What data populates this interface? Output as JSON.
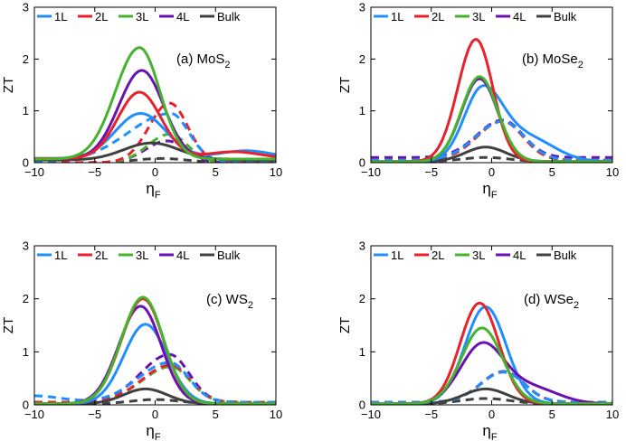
{
  "chart_data": [
    {
      "type": "line",
      "title": "(a) MoS",
      "title_sub": "2",
      "xlabel": "η",
      "xlabel_sub": "F",
      "ylabel": "ZT",
      "xlim": [
        -10,
        10
      ],
      "ylim": [
        0,
        3
      ],
      "xticks": [
        "−10",
        "−5",
        "0",
        "5",
        "10"
      ],
      "yticks": [
        "0",
        "1",
        "2",
        "3"
      ],
      "legend_position": "top-left",
      "series": [
        {
          "name": "1L",
          "color": "#1f8fff",
          "style": "solid",
          "peak": 0.95,
          "center": -1.2,
          "sl": 2.1,
          "sr": 2.1,
          "base": 0.08,
          "tail": [
            7.5,
            0.15
          ]
        },
        {
          "name": "2L",
          "color": "#e8222a",
          "style": "solid",
          "peak": 1.36,
          "center": -1.3,
          "sl": 1.8,
          "sr": 1.8,
          "base": 0.08,
          "tail": [
            6.5,
            0.13
          ]
        },
        {
          "name": "3L",
          "color": "#45b32c",
          "style": "solid",
          "peak": 2.22,
          "center": -1.3,
          "sl": 2.0,
          "sr": 1.7,
          "base": 0.07,
          "tail": null
        },
        {
          "name": "4L",
          "color": "#6a12b0",
          "style": "solid",
          "peak": 1.78,
          "center": -1.1,
          "sl": 1.9,
          "sr": 1.8,
          "base": 0.07,
          "tail": null
        },
        {
          "name": "Bulk",
          "color": "#404040",
          "style": "solid",
          "peak": 0.38,
          "center": -0.3,
          "sl": 2.3,
          "sr": 2.3,
          "base": 0.05,
          "tail": null
        },
        {
          "name": "1L",
          "color": "#1f8fff",
          "style": "dashed",
          "peak": 0.95,
          "center": 1.3,
          "sl": 3.5,
          "sr": 1.5,
          "base": 0.02,
          "tail": null
        },
        {
          "name": "2L",
          "color": "#e8222a",
          "style": "dashed",
          "peak": 1.15,
          "center": 1.2,
          "sl": 1.7,
          "sr": 1.5,
          "base": 0.0,
          "tail": null
        },
        {
          "name": "3L",
          "color": "#45b32c",
          "style": "dashed",
          "peak": 0.55,
          "center": 1.2,
          "sl": 1.8,
          "sr": 1.5,
          "base": 0.0,
          "tail": null
        },
        {
          "name": "4L",
          "color": "#6a12b0",
          "style": "dashed",
          "peak": 0.42,
          "center": 1.0,
          "sl": 1.8,
          "sr": 1.5,
          "base": 0.0,
          "tail": null
        },
        {
          "name": "Bulk",
          "color": "#404040",
          "style": "dashed",
          "peak": 0.08,
          "center": 0.5,
          "sl": 2.2,
          "sr": 2.2,
          "base": 0.0,
          "tail": null
        }
      ]
    },
    {
      "type": "line",
      "title": "(b) MoSe",
      "title_sub": "2",
      "xlabel": "η",
      "xlabel_sub": "F",
      "ylabel": "ZT",
      "xlim": [
        -10,
        10
      ],
      "ylim": [
        0,
        3
      ],
      "xticks": [
        "−10",
        "−5",
        "0",
        "5",
        "10"
      ],
      "yticks": [
        "0",
        "1",
        "2",
        "3"
      ],
      "legend_position": "top-left",
      "series": [
        {
          "name": "1L",
          "color": "#1f8fff",
          "style": "solid",
          "peak": 1.38,
          "center": -0.8,
          "sl": 1.5,
          "sr": 1.7,
          "base": 0.02,
          "tail": [
            3.0,
            0.45
          ]
        },
        {
          "name": "2L",
          "color": "#e8222a",
          "style": "solid",
          "peak": 2.38,
          "center": -1.3,
          "sl": 1.5,
          "sr": 1.4,
          "base": 0.02,
          "tail": null
        },
        {
          "name": "3L",
          "color": "#45b32c",
          "style": "solid",
          "peak": 1.66,
          "center": -1.0,
          "sl": 1.5,
          "sr": 1.5,
          "base": 0.02,
          "tail": null
        },
        {
          "name": "4L",
          "color": "#6a12b0",
          "style": "solid",
          "peak": 1.62,
          "center": -1.0,
          "sl": 1.5,
          "sr": 1.5,
          "base": 0.02,
          "tail": null
        },
        {
          "name": "Bulk",
          "color": "#404040",
          "style": "solid",
          "peak": 0.3,
          "center": -0.5,
          "sl": 1.7,
          "sr": 1.7,
          "base": 0.02,
          "tail": null
        },
        {
          "name": "1L",
          "color": "#1f8fff",
          "style": "dashed",
          "peak": 0.8,
          "center": 0.9,
          "sl": 2.2,
          "sr": 1.8,
          "base": 0.05,
          "tail": null
        },
        {
          "name": "2L",
          "color": "#e8222a",
          "style": "dashed",
          "peak": 0.8,
          "center": 0.9,
          "sl": 2.1,
          "sr": 1.7,
          "base": 0.05,
          "tail": null
        },
        {
          "name": "3L",
          "color": "#45b32c",
          "style": "dashed",
          "peak": 0.8,
          "center": 0.9,
          "sl": 2.1,
          "sr": 1.7,
          "base": 0.05,
          "tail": null
        },
        {
          "name": "4L",
          "color": "#6a12b0",
          "style": "dashed",
          "peak": 0.82,
          "center": 0.9,
          "sl": 2.1,
          "sr": 1.7,
          "base": 0.1,
          "tail": null
        },
        {
          "name": "Bulk",
          "color": "#404040",
          "style": "dashed",
          "peak": 0.1,
          "center": -0.5,
          "sl": 2.0,
          "sr": 2.0,
          "base": 0.02,
          "tail": null
        }
      ]
    },
    {
      "type": "line",
      "title": "(c) WS",
      "title_sub": "2",
      "xlabel": "η",
      "xlabel_sub": "F",
      "ylabel": "ZT",
      "xlim": [
        -10,
        10
      ],
      "ylim": [
        0,
        3
      ],
      "xticks": [
        "−10",
        "−5",
        "0",
        "5",
        "10"
      ],
      "yticks": [
        "0",
        "1",
        "2",
        "3"
      ],
      "legend_position": "top-left",
      "series": [
        {
          "name": "1L",
          "color": "#1f8fff",
          "style": "solid",
          "peak": 1.52,
          "center": -0.8,
          "sl": 1.8,
          "sr": 1.8,
          "base": 0.02,
          "tail": null
        },
        {
          "name": "2L",
          "color": "#e8222a",
          "style": "solid",
          "peak": 2.0,
          "center": -1.0,
          "sl": 1.8,
          "sr": 1.7,
          "base": 0.02,
          "tail": null
        },
        {
          "name": "3L",
          "color": "#45b32c",
          "style": "solid",
          "peak": 2.03,
          "center": -1.0,
          "sl": 1.8,
          "sr": 1.7,
          "base": 0.02,
          "tail": null
        },
        {
          "name": "4L",
          "color": "#6a12b0",
          "style": "solid",
          "peak": 1.86,
          "center": -1.2,
          "sl": 1.8,
          "sr": 1.7,
          "base": 0.02,
          "tail": null
        },
        {
          "name": "Bulk",
          "color": "#404040",
          "style": "solid",
          "peak": 0.3,
          "center": -0.8,
          "sl": 1.8,
          "sr": 1.8,
          "base": 0.02,
          "tail": null
        },
        {
          "name": "1L",
          "color": "#1f8fff",
          "style": "dashed",
          "peak": 0.8,
          "center": 1.2,
          "sl": 2.6,
          "sr": 1.6,
          "base": 0.05,
          "tail": [
            -10.0,
            0.12
          ]
        },
        {
          "name": "2L",
          "color": "#e8222a",
          "style": "dashed",
          "peak": 0.75,
          "center": 1.3,
          "sl": 2.4,
          "sr": 1.6,
          "base": 0.05,
          "tail": null
        },
        {
          "name": "3L",
          "color": "#45b32c",
          "style": "dashed",
          "peak": 0.72,
          "center": 1.3,
          "sl": 2.4,
          "sr": 1.6,
          "base": 0.05,
          "tail": null
        },
        {
          "name": "4L",
          "color": "#6a12b0",
          "style": "dashed",
          "peak": 0.95,
          "center": 1.2,
          "sl": 2.4,
          "sr": 1.6,
          "base": 0.05,
          "tail": null
        },
        {
          "name": "Bulk",
          "color": "#404040",
          "style": "dashed",
          "peak": 0.1,
          "center": 0.0,
          "sl": 2.0,
          "sr": 2.0,
          "base": 0.02,
          "tail": null
        }
      ]
    },
    {
      "type": "line",
      "title": "(d) WSe",
      "title_sub": "2",
      "xlabel": "η",
      "xlabel_sub": "F",
      "ylabel": "ZT",
      "xlim": [
        -10,
        10
      ],
      "ylim": [
        0,
        3
      ],
      "xticks": [
        "−10",
        "−5",
        "0",
        "5",
        "10"
      ],
      "yticks": [
        "0",
        "1",
        "2",
        "3"
      ],
      "legend_position": "top-left",
      "series": [
        {
          "name": "1L",
          "color": "#1f8fff",
          "style": "solid",
          "peak": 1.85,
          "center": -0.5,
          "sl": 1.7,
          "sr": 1.7,
          "base": 0.02,
          "tail": null
        },
        {
          "name": "2L",
          "color": "#e8222a",
          "style": "solid",
          "peak": 1.92,
          "center": -1.0,
          "sl": 1.6,
          "sr": 1.6,
          "base": 0.02,
          "tail": null
        },
        {
          "name": "3L",
          "color": "#45b32c",
          "style": "solid",
          "peak": 1.45,
          "center": -0.8,
          "sl": 1.7,
          "sr": 1.7,
          "base": 0.02,
          "tail": null
        },
        {
          "name": "4L",
          "color": "#6a12b0",
          "style": "solid",
          "peak": 1.12,
          "center": -0.8,
          "sl": 1.8,
          "sr": 1.8,
          "base": 0.02,
          "tail": [
            3.3,
            0.3
          ]
        },
        {
          "name": "Bulk",
          "color": "#404040",
          "style": "solid",
          "peak": 0.3,
          "center": -0.5,
          "sl": 1.8,
          "sr": 1.8,
          "base": 0.02,
          "tail": null
        },
        {
          "name": "1L",
          "color": "#1f8fff",
          "style": "dashed",
          "peak": 0.62,
          "center": 1.0,
          "sl": 1.9,
          "sr": 1.7,
          "base": 0.05,
          "tail": null
        },
        {
          "name": "2L",
          "color": "#e8222a",
          "style": "dashed",
          "peak": 0.62,
          "center": 1.0,
          "sl": 1.9,
          "sr": 1.7,
          "base": 0.05,
          "tail": null
        },
        {
          "name": "3L",
          "color": "#45b32c",
          "style": "dashed",
          "peak": 0.62,
          "center": 1.0,
          "sl": 1.9,
          "sr": 1.7,
          "base": 0.05,
          "tail": null
        },
        {
          "name": "4L",
          "color": "#6a12b0",
          "style": "dashed",
          "peak": 0.63,
          "center": 1.0,
          "sl": 1.9,
          "sr": 1.7,
          "base": 0.05,
          "tail": null
        },
        {
          "name": "Bulk",
          "color": "#404040",
          "style": "dashed",
          "peak": 0.12,
          "center": -0.5,
          "sl": 2.0,
          "sr": 2.0,
          "base": 0.02,
          "tail": null
        }
      ]
    }
  ]
}
